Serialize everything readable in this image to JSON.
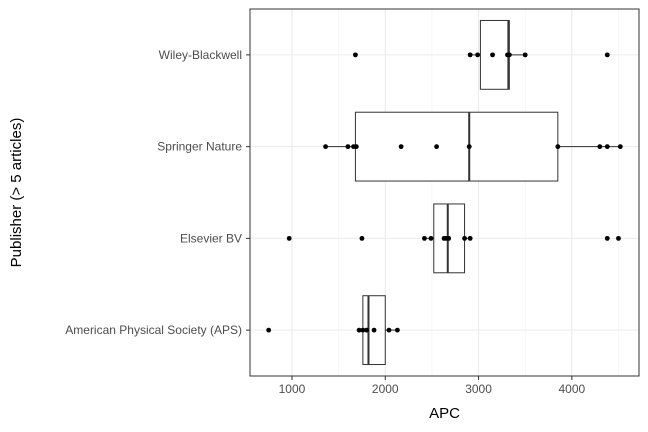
{
  "chart_data": {
    "type": "boxplot",
    "orientation": "horizontal",
    "xlabel": "APC",
    "ylabel": "Publisher (> 5 articles)",
    "xlim": [
      550,
      4720
    ],
    "xticks": [
      1000,
      2000,
      3000,
      4000
    ],
    "grid": true,
    "categories": [
      "American Physical Society (APS)",
      "Elsevier BV",
      "Springer Nature",
      "Wiley-Blackwell"
    ],
    "boxes": [
      {
        "category": "American Physical Society (APS)",
        "whisker_low": 1720,
        "q1": 1760,
        "median": 1820,
        "q3": 2000,
        "whisker_high": 2130
      },
      {
        "category": "Elsevier BV",
        "whisker_low": 2420,
        "q1": 2520,
        "median": 2670,
        "q3": 2850,
        "whisker_high": 2910
      },
      {
        "category": "Springer Nature",
        "whisker_low": 1360,
        "q1": 1680,
        "median": 2900,
        "q3": 3850,
        "whisker_high": 4520
      },
      {
        "category": "Wiley-Blackwell",
        "whisker_low": 2910,
        "q1": 3020,
        "median": 3320,
        "q3": 3330,
        "whisker_high": 3500
      }
    ],
    "points": [
      {
        "category": "American Physical Society (APS)",
        "values": [
          750,
          1720,
          1760,
          1800,
          1880,
          2040,
          2130
        ]
      },
      {
        "category": "Elsevier BV",
        "values": [
          970,
          1750,
          2420,
          2490,
          2630,
          2650,
          2680,
          2850,
          2910,
          4380,
          4500
        ]
      },
      {
        "category": "Springer Nature",
        "values": [
          1360,
          1600,
          1660,
          1690,
          2170,
          2550,
          2900,
          3850,
          4300,
          4380,
          4520
        ]
      },
      {
        "category": "Wiley-Blackwell",
        "values": [
          1680,
          2910,
          2990,
          3150,
          3310,
          3330,
          3500,
          4380
        ]
      }
    ]
  }
}
